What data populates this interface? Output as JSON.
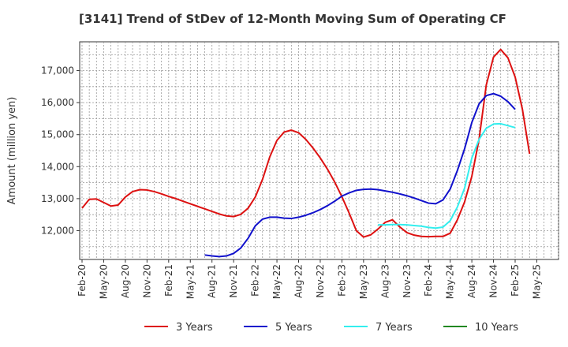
{
  "chart_data": {
    "type": "line",
    "title": "[3141]  Trend of StDev of 12-Month Moving Sum of Operating CF",
    "ylabel": "Amount (million yen)",
    "xlabel": "",
    "ylim": [
      11100,
      17900
    ],
    "y_ticks": [
      12000,
      13000,
      14000,
      15000,
      16000,
      17000
    ],
    "y_tick_labels": [
      "12,000",
      "13,000",
      "14,000",
      "15,000",
      "16,000",
      "17,000"
    ],
    "x_ticks": [
      "Feb-20",
      "May-20",
      "Aug-20",
      "Nov-20",
      "Feb-21",
      "May-21",
      "Aug-21",
      "Nov-21",
      "Feb-22",
      "May-22",
      "Aug-22",
      "Nov-22",
      "Feb-23",
      "May-23",
      "Aug-23",
      "Nov-23",
      "Feb-24",
      "May-24",
      "Aug-24",
      "Nov-24",
      "Feb-25",
      "May-25"
    ],
    "grid": true,
    "legend_position": "bottom",
    "series": [
      {
        "name": "3 Years",
        "color": "#dd1111",
        "start": "2020-02",
        "values": [
          12700,
          12980,
          12990,
          12880,
          12770,
          12800,
          13050,
          13220,
          13280,
          13270,
          13220,
          13150,
          13070,
          13000,
          12920,
          12840,
          12760,
          12680,
          12600,
          12520,
          12460,
          12440,
          12510,
          12700,
          13050,
          13600,
          14300,
          14820,
          15080,
          15140,
          15060,
          14850,
          14580,
          14270,
          13920,
          13520,
          13060,
          12550,
          12000,
          11800,
          11870,
          12050,
          12260,
          12340,
          12120,
          11940,
          11860,
          11820,
          11810,
          11820,
          11820,
          11920,
          12340,
          12900,
          13700,
          14850,
          16550,
          17420,
          17660,
          17400,
          16800,
          15800,
          14400
        ]
      },
      {
        "name": "5 Years",
        "color": "#1111cc",
        "start": "2021-07",
        "values": [
          11240,
          11210,
          11190,
          11210,
          11290,
          11460,
          11760,
          12150,
          12360,
          12420,
          12420,
          12390,
          12380,
          12420,
          12480,
          12560,
          12660,
          12780,
          12920,
          13080,
          13180,
          13260,
          13290,
          13300,
          13280,
          13240,
          13200,
          13150,
          13090,
          13020,
          12940,
          12860,
          12840,
          12960,
          13300,
          13880,
          14560,
          15380,
          15960,
          16220,
          16280,
          16200,
          16030,
          15790
        ]
      },
      {
        "name": "7 Years",
        "color": "#33eeee",
        "start": "2023-07",
        "values": [
          12180,
          12180,
          12190,
          12190,
          12180,
          12160,
          12140,
          12100,
          12080,
          12110,
          12310,
          12740,
          13330,
          14270,
          14850,
          15200,
          15330,
          15340,
          15280,
          15220
        ]
      },
      {
        "name": "10 Years",
        "color": "#228822",
        "start": "2020-02",
        "values": []
      }
    ]
  }
}
